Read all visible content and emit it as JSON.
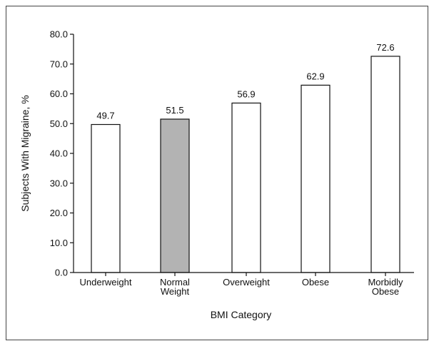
{
  "chart_data": {
    "type": "bar",
    "categories": [
      [
        "Underweight"
      ],
      [
        "Normal",
        "Weight"
      ],
      [
        "Overweight"
      ],
      [
        "Obese"
      ],
      [
        "Morbidly",
        "Obese"
      ]
    ],
    "values": [
      49.7,
      51.5,
      56.9,
      62.9,
      72.6
    ],
    "data_labels": [
      "49.7",
      "51.5",
      "56.9",
      "62.9",
      "72.6"
    ],
    "highlight_index": 1,
    "xlabel": "BMI Category",
    "ylabel": "Subjects With Migraine, %",
    "ylim": [
      0,
      80
    ],
    "yticks": [
      0,
      10,
      20,
      30,
      40,
      50,
      60,
      70,
      80
    ],
    "ytick_labels": [
      "0.0",
      "10.0",
      "20.0",
      "30.0",
      "40.0",
      "50.0",
      "60.0",
      "70.0",
      "80.0"
    ],
    "grid": false,
    "legend": "none",
    "colors": {
      "bar_fill": "#ffffff",
      "bar_highlight_fill": "#b3b3b3",
      "bar_stroke": "#111111",
      "axis": "#111111",
      "frame": "#444444"
    }
  }
}
